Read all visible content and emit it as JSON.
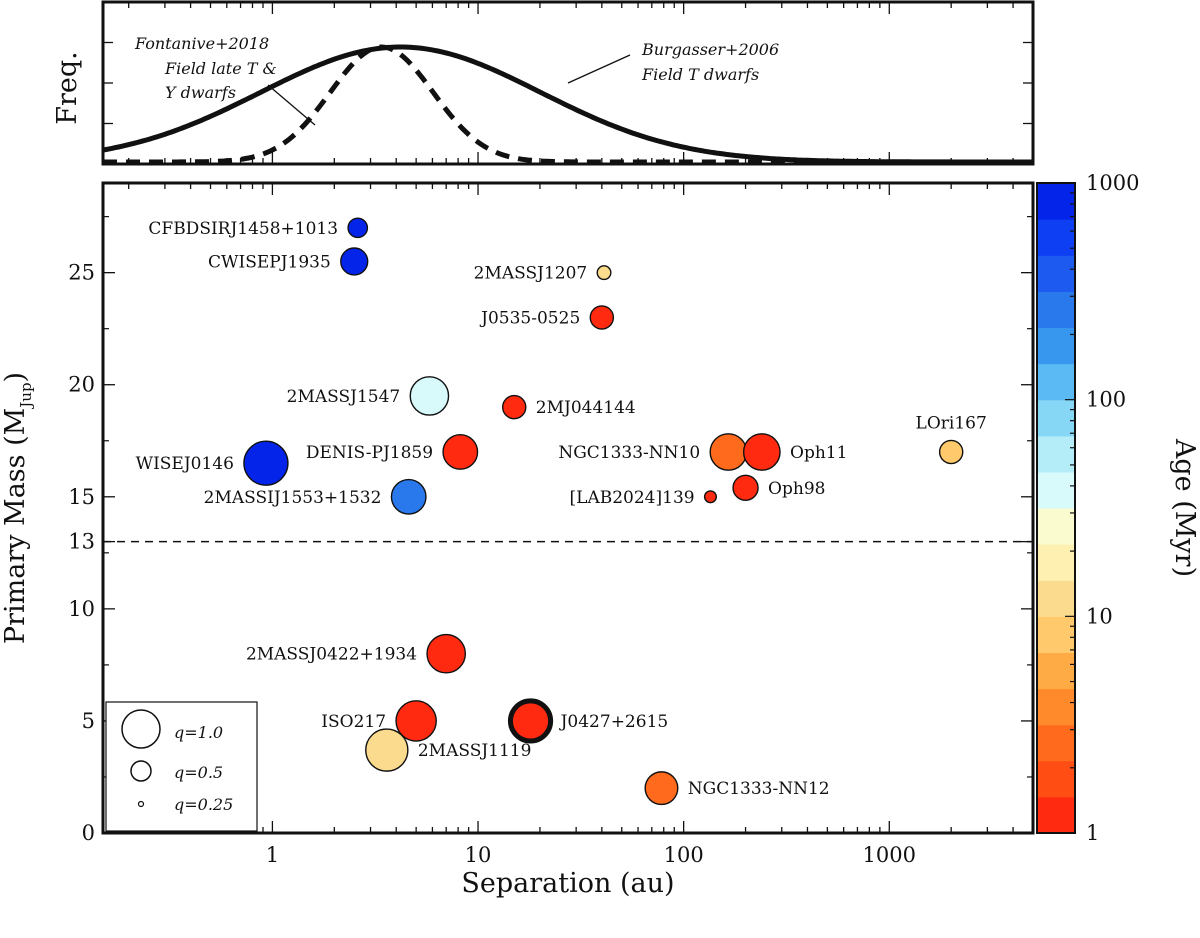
{
  "chart_data": [
    {
      "type": "line",
      "panel": "top",
      "ylabel": "Freq.",
      "x_scale": "log",
      "xlim": [
        0.15,
        5000
      ],
      "curves": [
        {
          "name": "Burgasser+2006 Field T dwarfs",
          "label_lines": [
            "Burgasser+2006",
            "Field T dwarfs"
          ],
          "style": "solid",
          "distribution": "lognormal",
          "peak_x": 4.2,
          "sigma_dex": 0.68
        },
        {
          "name": "Fontanive+2018 Field late T & Y dwarfs",
          "label_lines": [
            "Fontanive+2018",
            "Field late T &",
            "Y dwarfs"
          ],
          "style": "dashed",
          "distribution": "lognormal",
          "peak_x": 3.4,
          "sigma_dex": 0.25
        }
      ]
    },
    {
      "type": "scatter",
      "panel": "main",
      "xlabel": "Separation (au)",
      "ylabel": "Primary Mass (M",
      "ylabel_sub": "Jup",
      "ylabel_close": ")",
      "x_scale": "log",
      "xlim": [
        0.15,
        5000
      ],
      "ylim": [
        0,
        29
      ],
      "x_ticks": [
        1,
        10,
        100,
        1000
      ],
      "x_tick_labels": [
        "1",
        "10",
        "100",
        "1000"
      ],
      "y_ticks": [
        0,
        5,
        10,
        13,
        15,
        20,
        25
      ],
      "y_tick_labels": [
        "0",
        "5",
        "10",
        "13",
        "15",
        "20",
        "25"
      ],
      "deuterium_line": 13,
      "colorbar": {
        "label": "Age (Myr)",
        "scale": "log",
        "range": [
          1,
          1000
        ],
        "tick_values": [
          1,
          10,
          100,
          1000
        ],
        "tick_labels": [
          "1",
          "10",
          "100",
          "1000"
        ],
        "colors": [
          "#ff2a0f",
          "#ff4d14",
          "#ff6a1c",
          "#ff8a2b",
          "#ffab45",
          "#ffc96c",
          "#fbdc8e",
          "#fdf0b0",
          "#fbfbd0",
          "#d8fafa",
          "#b4ecf8",
          "#86d7f5",
          "#5bb9f3",
          "#3797ee",
          "#2a79ec",
          "#1c5af0",
          "#0e3ff3",
          "#0424ea"
        ]
      },
      "size_legend": [
        {
          "q": 1.0,
          "label": "q=1.0"
        },
        {
          "q": 0.5,
          "label": "q=0.5"
        },
        {
          "q": 0.25,
          "label": "q=0.25"
        }
      ],
      "points": [
        {
          "name": "CFBDSIRJ1458+1013",
          "sep_au": 2.6,
          "mass_mjup": 27.0,
          "age_myr": 1000,
          "q": 0.35,
          "label_side": "left"
        },
        {
          "name": "CWISEPJ1935",
          "sep_au": 2.5,
          "mass_mjup": 25.5,
          "age_myr": 800,
          "q": 0.55,
          "label_side": "left"
        },
        {
          "name": "2MASSJ1207",
          "sep_au": 41,
          "mass_mjup": 25.0,
          "age_myr": 10,
          "q": 0.2,
          "label_side": "left"
        },
        {
          "name": "J0535-0525",
          "sep_au": 40,
          "mass_mjup": 23.0,
          "age_myr": 1,
          "q": 0.45,
          "label_side": "left"
        },
        {
          "name": "2MASSJ1547",
          "sep_au": 5.8,
          "mass_mjup": 19.5,
          "age_myr": 45,
          "q": 0.85,
          "label_side": "left"
        },
        {
          "name": "2MJ044144",
          "sep_au": 15,
          "mass_mjup": 19.0,
          "age_myr": 1,
          "q": 0.45,
          "label_side": "right"
        },
        {
          "name": "LOri167",
          "sep_au": 2000,
          "mass_mjup": 17.0,
          "age_myr": 8,
          "q": 0.45,
          "label_side": "above"
        },
        {
          "name": "WISEJ0146",
          "sep_au": 0.93,
          "mass_mjup": 16.5,
          "age_myr": 700,
          "q": 1.0,
          "label_side": "left"
        },
        {
          "name": "DENIS-PJ1859",
          "sep_au": 8.2,
          "mass_mjup": 17.0,
          "age_myr": 1.2,
          "q": 0.75,
          "label_side": "left"
        },
        {
          "name": "NGC1333-NN10",
          "sep_au": 165,
          "mass_mjup": 17.0,
          "age_myr": 3,
          "q": 0.8,
          "label_side": "left"
        },
        {
          "name": "Oph11",
          "sep_au": 240,
          "mass_mjup": 17.0,
          "age_myr": 1,
          "q": 0.8,
          "label_side": "right"
        },
        {
          "name": "2MASSIJ1553+1532",
          "sep_au": 4.6,
          "mass_mjup": 15.0,
          "age_myr": 300,
          "q": 0.75,
          "label_side": "left"
        },
        {
          "name": "[LAB2024]139",
          "sep_au": 135,
          "mass_mjup": 15.0,
          "age_myr": 1,
          "q": 0.15,
          "label_side": "left"
        },
        {
          "name": "Oph98",
          "sep_au": 200,
          "mass_mjup": 15.4,
          "age_myr": 1,
          "q": 0.5,
          "label_side": "right"
        },
        {
          "name": "2MASSJ0422+1934",
          "sep_au": 7.0,
          "mass_mjup": 8.0,
          "age_myr": 1,
          "q": 0.85,
          "label_side": "left"
        },
        {
          "name": "ISO217",
          "sep_au": 5.0,
          "mass_mjup": 5.0,
          "age_myr": 1,
          "q": 0.9,
          "label_side": "left"
        },
        {
          "name": "2MASSJ1119",
          "sep_au": 3.6,
          "mass_mjup": 3.7,
          "age_myr": 10,
          "q": 0.95,
          "label_side": "right"
        },
        {
          "name": "J0427+2615",
          "sep_au": 18,
          "mass_mjup": 5.0,
          "age_myr": 1,
          "q": 0.9,
          "thick_edge": true,
          "label_side": "right"
        },
        {
          "name": "NGC1333-NN12",
          "sep_au": 78,
          "mass_mjup": 2.0,
          "age_myr": 3,
          "q": 0.7,
          "label_side": "right"
        }
      ]
    }
  ]
}
